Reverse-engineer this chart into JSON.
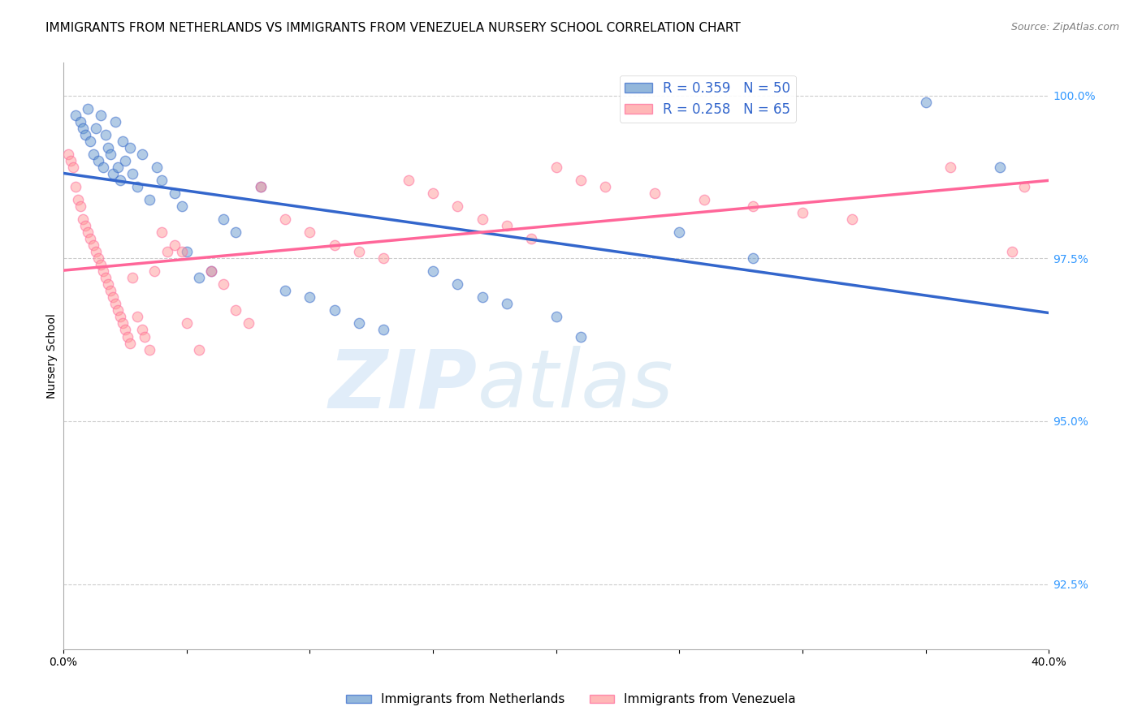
{
  "title": "IMMIGRANTS FROM NETHERLANDS VS IMMIGRANTS FROM VENEZUELA NURSERY SCHOOL CORRELATION CHART",
  "source": "Source: ZipAtlas.com",
  "ylabel": "Nursery School",
  "right_yticks": [
    "100.0%",
    "97.5%",
    "95.0%",
    "92.5%"
  ],
  "right_ytick_vals": [
    1.0,
    0.975,
    0.95,
    0.925
  ],
  "legend1_label": "R = 0.359   N = 50",
  "legend2_label": "R = 0.258   N = 65",
  "blue_color": "#6699CC",
  "pink_color": "#FF9999",
  "blue_line_color": "#3366CC",
  "pink_line_color": "#FF6699",
  "legend_text_color": "#3366CC",
  "right_axis_color": "#3399FF",
  "background_color": "#FFFFFF",
  "watermark_zip": "ZIP",
  "watermark_atlas": "atlas",
  "title_fontsize": 11,
  "scatter_alpha": 0.5,
  "scatter_size": 80,
  "xlim": [
    0.0,
    0.4
  ],
  "ylim": [
    0.915,
    1.005
  ],
  "blue_scatter_x": [
    0.005,
    0.007,
    0.008,
    0.009,
    0.01,
    0.011,
    0.012,
    0.013,
    0.014,
    0.015,
    0.016,
    0.017,
    0.018,
    0.019,
    0.02,
    0.021,
    0.022,
    0.023,
    0.024,
    0.025,
    0.027,
    0.028,
    0.03,
    0.032,
    0.035,
    0.038,
    0.04,
    0.045,
    0.048,
    0.05,
    0.055,
    0.06,
    0.065,
    0.07,
    0.08,
    0.09,
    0.1,
    0.11,
    0.12,
    0.13,
    0.15,
    0.16,
    0.17,
    0.18,
    0.2,
    0.21,
    0.25,
    0.28,
    0.35,
    0.38
  ],
  "blue_scatter_y": [
    0.997,
    0.996,
    0.995,
    0.994,
    0.998,
    0.993,
    0.991,
    0.995,
    0.99,
    0.997,
    0.989,
    0.994,
    0.992,
    0.991,
    0.988,
    0.996,
    0.989,
    0.987,
    0.993,
    0.99,
    0.992,
    0.988,
    0.986,
    0.991,
    0.984,
    0.989,
    0.987,
    0.985,
    0.983,
    0.976,
    0.972,
    0.973,
    0.981,
    0.979,
    0.986,
    0.97,
    0.969,
    0.967,
    0.965,
    0.964,
    0.973,
    0.971,
    0.969,
    0.968,
    0.966,
    0.963,
    0.979,
    0.975,
    0.999,
    0.989
  ],
  "pink_scatter_x": [
    0.002,
    0.003,
    0.004,
    0.005,
    0.006,
    0.007,
    0.008,
    0.009,
    0.01,
    0.011,
    0.012,
    0.013,
    0.014,
    0.015,
    0.016,
    0.017,
    0.018,
    0.019,
    0.02,
    0.021,
    0.022,
    0.023,
    0.024,
    0.025,
    0.026,
    0.027,
    0.028,
    0.03,
    0.032,
    0.033,
    0.035,
    0.037,
    0.04,
    0.042,
    0.045,
    0.048,
    0.05,
    0.055,
    0.06,
    0.065,
    0.07,
    0.075,
    0.08,
    0.09,
    0.1,
    0.11,
    0.12,
    0.13,
    0.14,
    0.15,
    0.16,
    0.17,
    0.18,
    0.19,
    0.2,
    0.21,
    0.22,
    0.24,
    0.26,
    0.28,
    0.3,
    0.32,
    0.36,
    0.385,
    0.39
  ],
  "pink_scatter_y": [
    0.991,
    0.99,
    0.989,
    0.986,
    0.984,
    0.983,
    0.981,
    0.98,
    0.979,
    0.978,
    0.977,
    0.976,
    0.975,
    0.974,
    0.973,
    0.972,
    0.971,
    0.97,
    0.969,
    0.968,
    0.967,
    0.966,
    0.965,
    0.964,
    0.963,
    0.962,
    0.972,
    0.966,
    0.964,
    0.963,
    0.961,
    0.973,
    0.979,
    0.976,
    0.977,
    0.976,
    0.965,
    0.961,
    0.973,
    0.971,
    0.967,
    0.965,
    0.986,
    0.981,
    0.979,
    0.977,
    0.976,
    0.975,
    0.987,
    0.985,
    0.983,
    0.981,
    0.98,
    0.978,
    0.989,
    0.987,
    0.986,
    0.985,
    0.984,
    0.983,
    0.982,
    0.981,
    0.989,
    0.976,
    0.986
  ],
  "legend_bottom_blue": "Immigrants from Netherlands",
  "legend_bottom_pink": "Immigrants from Venezuela"
}
